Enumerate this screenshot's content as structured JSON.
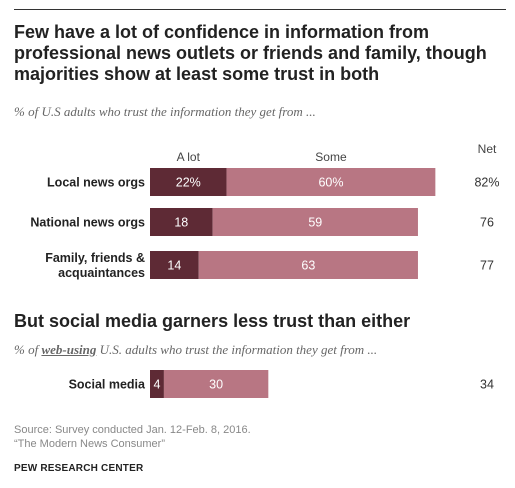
{
  "title": "Few have a lot of confidence in information from professional news outlets or friends and family, though majorities show at least some trust in both",
  "subtitle": "% of U.S adults who trust the information they get from ...",
  "section2_title": "But social media garners less trust than either",
  "subtitle2": {
    "pre": "% of ",
    "highlight": "web-using",
    "post": " U.S. adults who trust the information they get from ..."
  },
  "colors": {
    "alot": "#5e2a35",
    "some": "#b87683"
  },
  "chart_data": {
    "type": "bar",
    "orientation": "horizontal",
    "stacked": true,
    "legend": [
      "A lot",
      "Some"
    ],
    "net_header": "Net",
    "xlim": [
      0,
      100
    ],
    "groups": [
      {
        "categories": [
          "Local news orgs",
          "National news orgs",
          "Family, friends & acquaintances"
        ],
        "category_lines": [
          [
            "Local news orgs"
          ],
          [
            "National news orgs"
          ],
          [
            "Family, friends &",
            "acquaintances"
          ]
        ],
        "series": [
          {
            "name": "A lot",
            "values": [
              22,
              18,
              14
            ],
            "labels": [
              "22%",
              "18",
              "14"
            ]
          },
          {
            "name": "Some",
            "values": [
              60,
              59,
              63
            ],
            "labels": [
              "60%",
              "59",
              "63"
            ]
          }
        ],
        "net": [
          "82%",
          "76",
          "77"
        ]
      },
      {
        "categories": [
          "Social media"
        ],
        "category_lines": [
          [
            "Social media"
          ]
        ],
        "series": [
          {
            "name": "A lot",
            "values": [
              4
            ],
            "labels": [
              "4"
            ]
          },
          {
            "name": "Some",
            "values": [
              30
            ],
            "labels": [
              "30"
            ]
          }
        ],
        "net": [
          "34"
        ]
      }
    ]
  },
  "source_lines": [
    "Source: Survey conducted Jan. 12-Feb. 8, 2016.",
    "“The Modern News Consumer”"
  ],
  "brand": "PEW RESEARCH CENTER"
}
